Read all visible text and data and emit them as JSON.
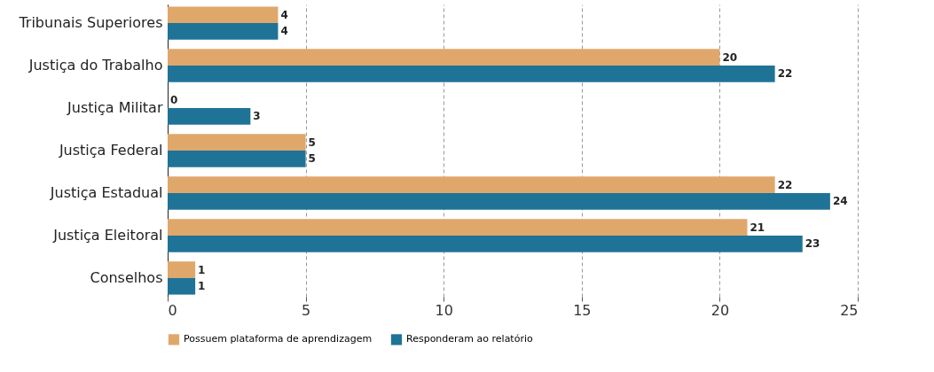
{
  "chart_data": {
    "type": "bar",
    "orientation": "horizontal",
    "categories": [
      "Tribunais Superiores",
      "Justiça do Trabalho",
      "Justiça Militar",
      "Justiça Federal",
      "Justiça Estadual",
      "Justiça Eleitoral",
      "Conselhos"
    ],
    "series": [
      {
        "name": "Possuem plataforma de aprendizagem",
        "color": "#e0a76b",
        "values": [
          4,
          20,
          0,
          5,
          22,
          21,
          1
        ]
      },
      {
        "name": "Responderam ao relatório",
        "color": "#1f7396",
        "values": [
          4,
          22,
          3,
          5,
          24,
          23,
          1
        ]
      }
    ],
    "xlim": [
      0,
      25
    ],
    "xticks": [
      0,
      5,
      10,
      15,
      20,
      25
    ],
    "grid": "x",
    "legend": "bottom",
    "data_labels": true
  }
}
